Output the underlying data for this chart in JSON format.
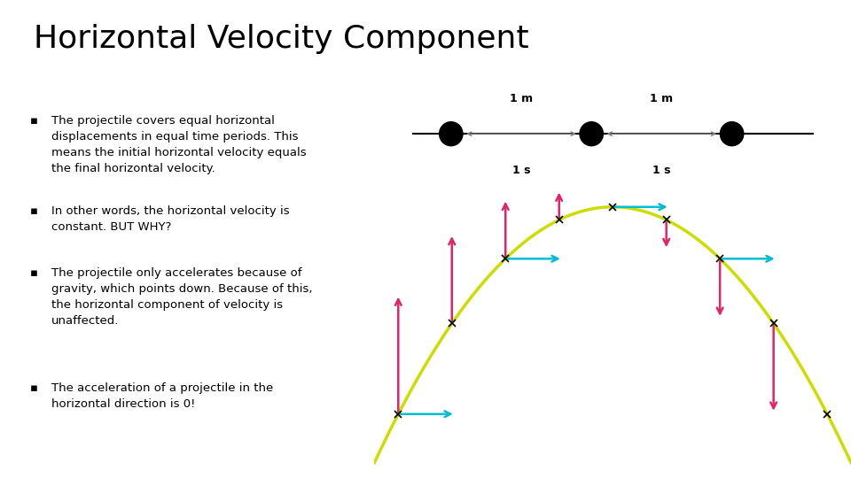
{
  "title": "Horizontal Velocity Component",
  "title_fontsize": 26,
  "bg_color": "#ffffff",
  "text_color": "#000000",
  "bullet_points": [
    "The projectile covers equal horizontal\ndisplacements in equal time periods. This\nmeans the initial horizontal velocity equals\nthe final horizontal velocity.",
    "In other words, the horizontal velocity is\nconstant. BUT WHY?",
    "The projectile only accelerates because of\ngravity, which points down. Because of this,\nthe horizontal component of velocity is\nunaffected.",
    "The acceleration of a projectile in the\nhorizontal direction is 0!"
  ],
  "bullet_fontsize": 9.5,
  "traj_color": "#ccdd00",
  "arrow_h_color": "#00bcd4",
  "arrow_v_color": "#e0246a",
  "x_marker_color": "#000000"
}
